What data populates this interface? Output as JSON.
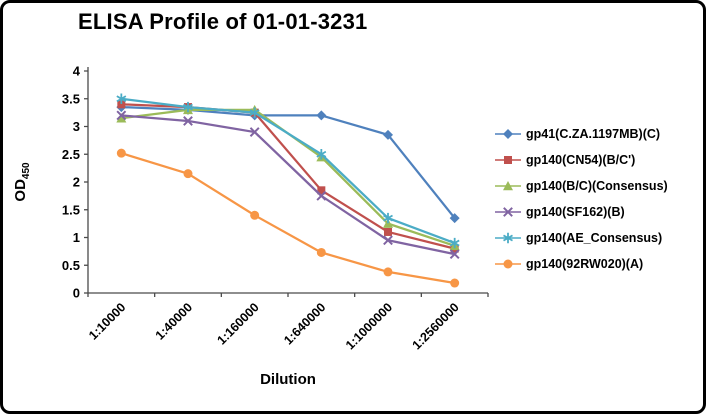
{
  "chart_data": {
    "type": "line",
    "title": "ELISA Profile of 01-01-3231",
    "xlabel": "Dilution",
    "ylabel": "OD",
    "ylabel_sub": "450",
    "categories": [
      "1:10000",
      "1:40000",
      "1:160000",
      "1:640000",
      "1:1000000",
      "1:2560000"
    ],
    "ylim": [
      0,
      4
    ],
    "ytick_step": 0.5,
    "yticks": [
      "0",
      "0.5",
      "1",
      "1.5",
      "2",
      "2.5",
      "3",
      "3.5",
      "4"
    ],
    "grid": false,
    "legend_position": "right",
    "axis_color": "#4a4a4a",
    "series": [
      {
        "name": "gp41(C.ZA.1197MB)(C)",
        "color": "#4F81BD",
        "marker": "diamond",
        "values": [
          3.35,
          3.3,
          3.2,
          3.2,
          2.85,
          1.35
        ]
      },
      {
        "name": "gp140(CN54)(B/C')",
        "color": "#C0504D",
        "marker": "square",
        "values": [
          3.4,
          3.35,
          3.25,
          1.85,
          1.1,
          0.8
        ]
      },
      {
        "name": "gp140(B/C)(Consensus)",
        "color": "#9BBB59",
        "marker": "triangle",
        "values": [
          3.15,
          3.3,
          3.3,
          2.45,
          1.25,
          0.85
        ]
      },
      {
        "name": "gp140(SF162)(B)",
        "color": "#8064A2",
        "marker": "x",
        "values": [
          3.2,
          3.1,
          2.9,
          1.75,
          0.95,
          0.7
        ]
      },
      {
        "name": "gp140(AE_Consensus)",
        "color": "#4BACC6",
        "marker": "asterisk",
        "values": [
          3.5,
          3.35,
          3.25,
          2.5,
          1.35,
          0.9
        ]
      },
      {
        "name": "gp140(92RW020)(A)",
        "color": "#F79646",
        "marker": "circle",
        "values": [
          2.52,
          2.15,
          1.4,
          0.73,
          0.38,
          0.18
        ]
      }
    ]
  }
}
